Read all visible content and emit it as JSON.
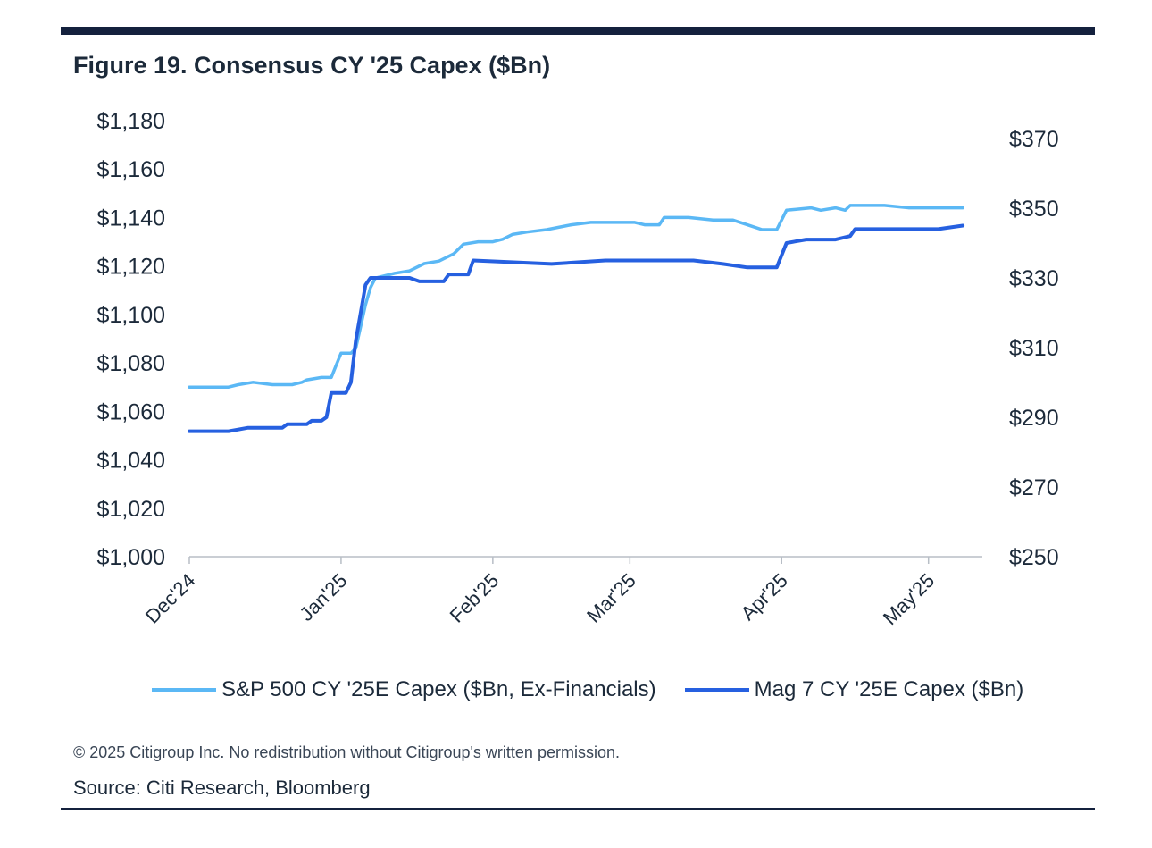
{
  "figure": {
    "title": "Figure 19. Consensus CY '25 Capex ($Bn)",
    "copyright": "© 2025 Citigroup Inc. No redistribution without Citigroup's written permission.",
    "source": "Source: Citi Research, Bloomberg"
  },
  "legend": [
    {
      "label": "S&P 500 CY '25E Capex ($Bn, Ex-Financials)",
      "color": "#5bb8f5"
    },
    {
      "label": "Mag 7 CY '25E Capex ($Bn)",
      "color": "#2660e0"
    }
  ],
  "chart_data": {
    "type": "line",
    "x_type": "date",
    "x_range": [
      "2024-12-01",
      "2025-05-12"
    ],
    "x_ticks": [
      {
        "date": "2024-12-01",
        "label": "Dec'24"
      },
      {
        "date": "2025-01-01",
        "label": "Jan'25"
      },
      {
        "date": "2025-02-01",
        "label": "Feb'25"
      },
      {
        "date": "2025-03-01",
        "label": "Mar'25"
      },
      {
        "date": "2025-04-01",
        "label": "Apr'25"
      },
      {
        "date": "2025-05-01",
        "label": "May'25"
      }
    ],
    "y_left": {
      "range": [
        1000,
        1180
      ],
      "ticks": [
        1000,
        1020,
        1040,
        1060,
        1080,
        1100,
        1120,
        1140,
        1160,
        1180
      ],
      "tick_labels": [
        "$1,000",
        "$1,020",
        "$1,040",
        "$1,060",
        "$1,080",
        "$1,100",
        "$1,120",
        "$1,140",
        "$1,160",
        "$1,180"
      ]
    },
    "y_right": {
      "range": [
        250,
        370
      ],
      "ticks": [
        250,
        270,
        290,
        310,
        330,
        350,
        370
      ],
      "tick_labels": [
        "$250",
        "$270",
        "$290",
        "$310",
        "$330",
        "$350",
        "$370"
      ]
    },
    "grid": false,
    "legend_position": "bottom",
    "series": [
      {
        "name": "S&P 500 CY '25E Capex ($Bn, Ex-Financials)",
        "axis": "left",
        "color": "#5bb8f5",
        "points": [
          [
            "2024-12-01",
            1070
          ],
          [
            "2024-12-05",
            1070
          ],
          [
            "2024-12-09",
            1070
          ],
          [
            "2024-12-11",
            1071
          ],
          [
            "2024-12-14",
            1072
          ],
          [
            "2024-12-18",
            1071
          ],
          [
            "2024-12-22",
            1071
          ],
          [
            "2024-12-24",
            1072
          ],
          [
            "2024-12-25",
            1073
          ],
          [
            "2024-12-28",
            1074
          ],
          [
            "2024-12-30",
            1074
          ],
          [
            "2024-12-31",
            1079
          ],
          [
            "2025-01-01",
            1084
          ],
          [
            "2025-01-03",
            1084
          ],
          [
            "2025-01-04",
            1086
          ],
          [
            "2025-01-05",
            1095
          ],
          [
            "2025-01-06",
            1104
          ],
          [
            "2025-01-07",
            1111
          ],
          [
            "2025-01-08",
            1115
          ],
          [
            "2025-01-12",
            1117
          ],
          [
            "2025-01-15",
            1118
          ],
          [
            "2025-01-18",
            1121
          ],
          [
            "2025-01-21",
            1122
          ],
          [
            "2025-01-24",
            1125
          ],
          [
            "2025-01-26",
            1129
          ],
          [
            "2025-01-29",
            1130
          ],
          [
            "2025-02-01",
            1130
          ],
          [
            "2025-02-03",
            1131
          ],
          [
            "2025-02-05",
            1133
          ],
          [
            "2025-02-08",
            1134
          ],
          [
            "2025-02-12",
            1135
          ],
          [
            "2025-02-17",
            1137
          ],
          [
            "2025-02-21",
            1138
          ],
          [
            "2025-02-26",
            1138
          ],
          [
            "2025-03-02",
            1138
          ],
          [
            "2025-03-04",
            1137
          ],
          [
            "2025-03-07",
            1137
          ],
          [
            "2025-03-08",
            1140
          ],
          [
            "2025-03-13",
            1140
          ],
          [
            "2025-03-18",
            1139
          ],
          [
            "2025-03-22",
            1139
          ],
          [
            "2025-03-25",
            1137
          ],
          [
            "2025-03-28",
            1135
          ],
          [
            "2025-03-31",
            1135
          ],
          [
            "2025-04-02",
            1143
          ],
          [
            "2025-04-07",
            1144
          ],
          [
            "2025-04-09",
            1143
          ],
          [
            "2025-04-12",
            1144
          ],
          [
            "2025-04-14",
            1143
          ],
          [
            "2025-04-15",
            1145
          ],
          [
            "2025-04-22",
            1145
          ],
          [
            "2025-04-27",
            1144
          ],
          [
            "2025-05-03",
            1144
          ],
          [
            "2025-05-07",
            1144
          ],
          [
            "2025-05-08",
            1144
          ]
        ]
      },
      {
        "name": "Mag 7 CY '25E Capex ($Bn)",
        "axis": "right",
        "color": "#2660e0",
        "points": [
          [
            "2024-12-01",
            286
          ],
          [
            "2024-12-08",
            286
          ],
          [
            "2024-12-09",
            286
          ],
          [
            "2024-12-13",
            287
          ],
          [
            "2024-12-20",
            287
          ],
          [
            "2024-12-21",
            288
          ],
          [
            "2024-12-25",
            288
          ],
          [
            "2024-12-26",
            289
          ],
          [
            "2024-12-28",
            289
          ],
          [
            "2024-12-29",
            290
          ],
          [
            "2024-12-30",
            297
          ],
          [
            "2025-01-02",
            297
          ],
          [
            "2025-01-03",
            300
          ],
          [
            "2025-01-04",
            312
          ],
          [
            "2025-01-05",
            320
          ],
          [
            "2025-01-06",
            328
          ],
          [
            "2025-01-07",
            330
          ],
          [
            "2025-01-15",
            330
          ],
          [
            "2025-01-17",
            329
          ],
          [
            "2025-01-22",
            329
          ],
          [
            "2025-01-23",
            331
          ],
          [
            "2025-01-27",
            331
          ],
          [
            "2025-01-28",
            335
          ],
          [
            "2025-02-13",
            334
          ],
          [
            "2025-02-24",
            335
          ],
          [
            "2025-03-14",
            335
          ],
          [
            "2025-03-20",
            334
          ],
          [
            "2025-03-25",
            333
          ],
          [
            "2025-03-31",
            333
          ],
          [
            "2025-04-02",
            340
          ],
          [
            "2025-04-06",
            341
          ],
          [
            "2025-04-12",
            341
          ],
          [
            "2025-04-15",
            342
          ],
          [
            "2025-04-16",
            344
          ],
          [
            "2025-04-22",
            344
          ],
          [
            "2025-05-03",
            344
          ],
          [
            "2025-05-08",
            345
          ]
        ]
      }
    ]
  }
}
